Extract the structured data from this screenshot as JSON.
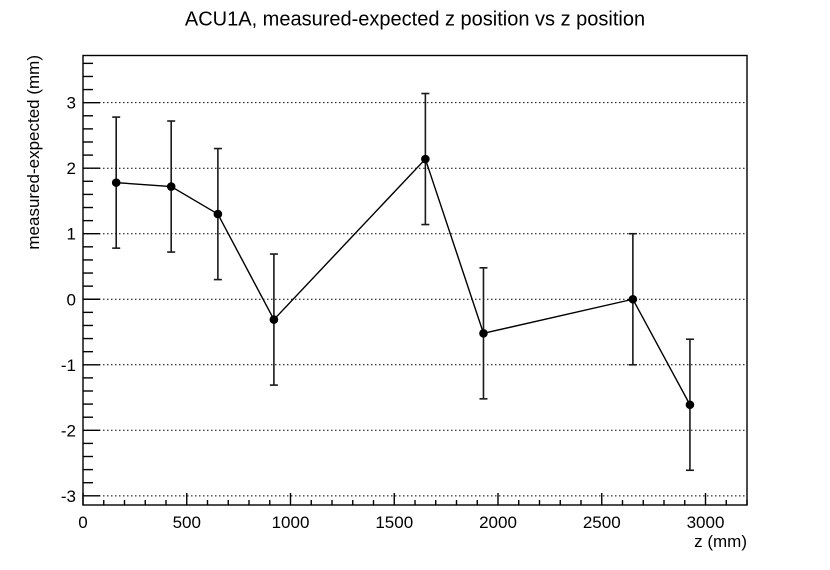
{
  "chart_data": {
    "type": "scatter",
    "subtype": "errorbar-line",
    "title": "ACU1A, measured-expected z position vs z position",
    "xlabel": "z (mm)",
    "ylabel": "measured-expected (mm)",
    "xlim": [
      0,
      3200
    ],
    "ylim": [
      -3.14,
      3.72
    ],
    "grid": "horizontal-dotted",
    "legend": "none",
    "x_ticks": [
      {
        "v": 0,
        "label": "0"
      },
      {
        "v": 500,
        "label": "500"
      },
      {
        "v": 1000,
        "label": "1000"
      },
      {
        "v": 1500,
        "label": "1500"
      },
      {
        "v": 2000,
        "label": "2000"
      },
      {
        "v": 2500,
        "label": "2500"
      },
      {
        "v": 3000,
        "label": "3000"
      }
    ],
    "x_minor_step": 100,
    "y_ticks": [
      {
        "v": -3,
        "label": "-3"
      },
      {
        "v": -2,
        "label": "-2"
      },
      {
        "v": -1,
        "label": "-1"
      },
      {
        "v": 0,
        "label": "0"
      },
      {
        "v": 1,
        "label": "1"
      },
      {
        "v": 2,
        "label": "2"
      },
      {
        "v": 3,
        "label": "3"
      }
    ],
    "y_minor_step": 0.2,
    "series": [
      {
        "name": "ACU1A",
        "marker": "filled-circle",
        "color": "#000000",
        "points": [
          {
            "x": 160,
            "y": 1.78,
            "yerr": 1.0
          },
          {
            "x": 425,
            "y": 1.72,
            "yerr": 1.0
          },
          {
            "x": 650,
            "y": 1.3,
            "yerr": 1.0
          },
          {
            "x": 920,
            "y": -0.31,
            "yerr": 1.0
          },
          {
            "x": 1650,
            "y": 2.14,
            "yerr": 1.0
          },
          {
            "x": 1930,
            "y": -0.52,
            "yerr": 1.0
          },
          {
            "x": 2650,
            "y": 0.0,
            "yerr": 1.0
          },
          {
            "x": 2925,
            "y": -1.61,
            "yerr": 1.0
          }
        ]
      }
    ],
    "colors": {
      "background": "#ffffff",
      "foreground": "#000000"
    }
  }
}
